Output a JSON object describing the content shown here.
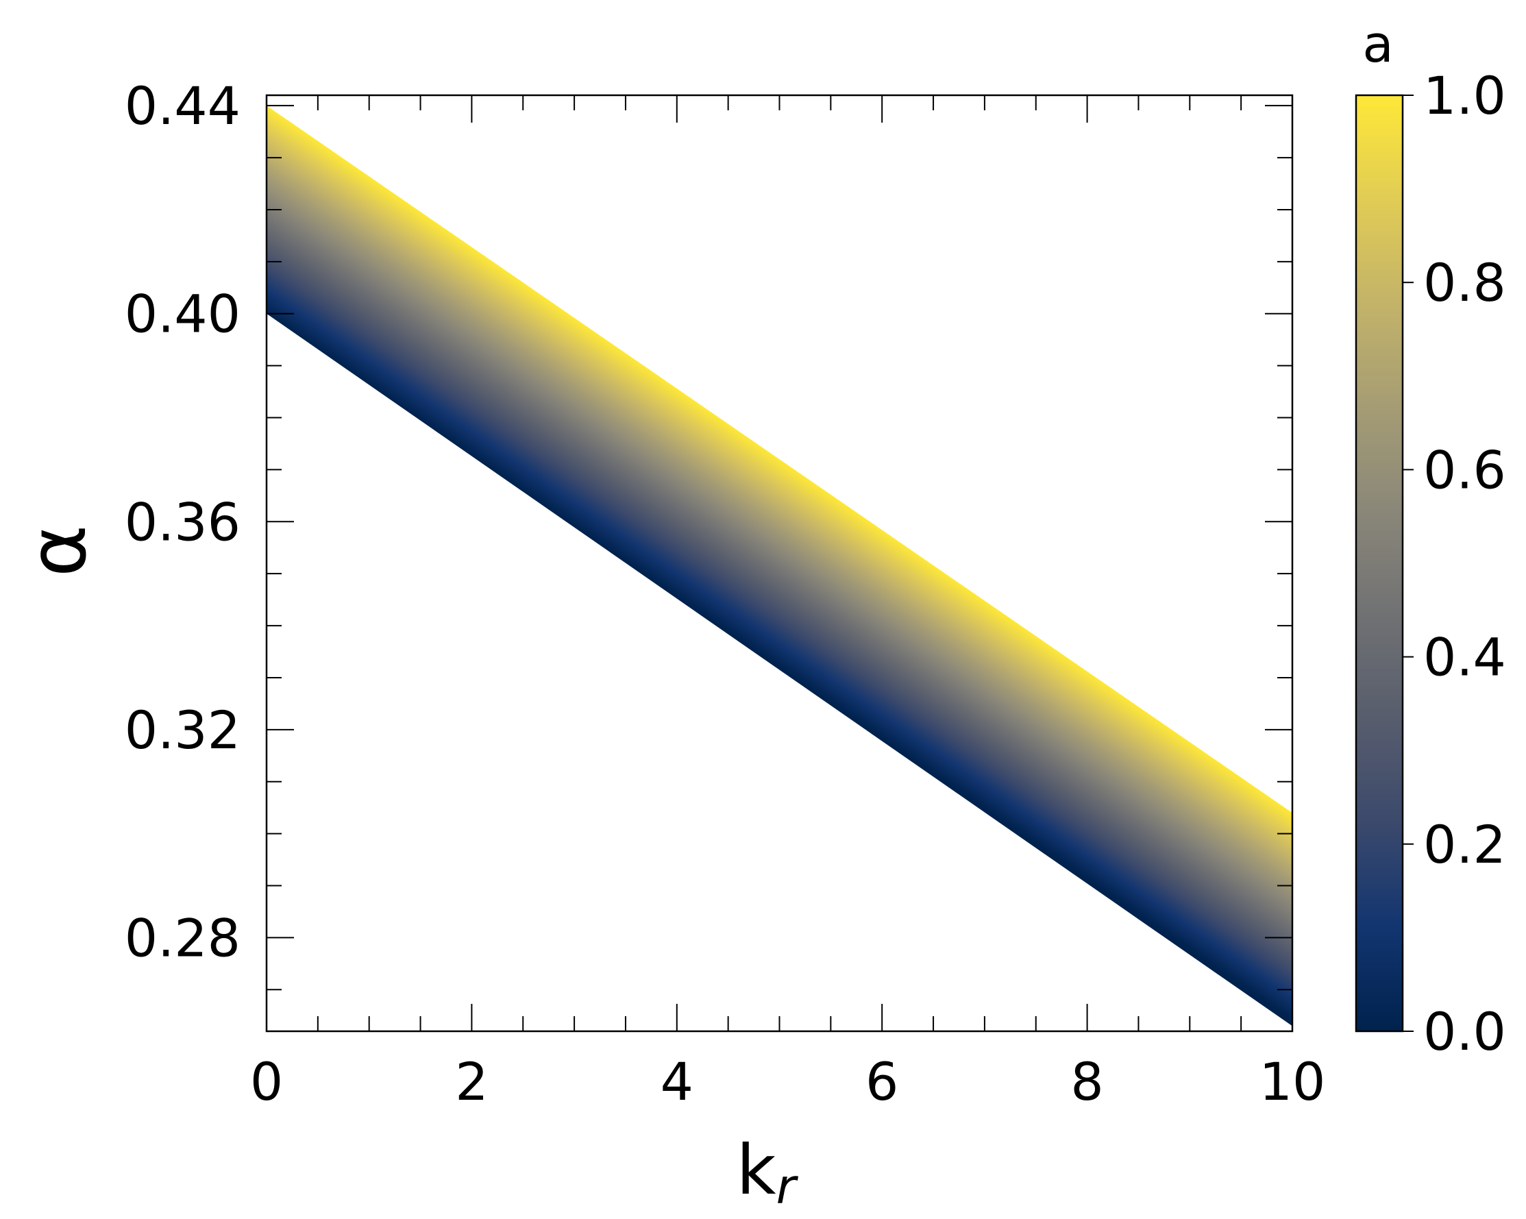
{
  "chart_data": {
    "type": "area",
    "xlabel": "k",
    "xlabel_subscript": "r",
    "ylabel": "α",
    "xlim": [
      0,
      10
    ],
    "ylim": [
      0.262,
      0.442
    ],
    "x_ticks": [
      0,
      2,
      4,
      6,
      8,
      10
    ],
    "x_tick_labels": [
      "0",
      "2",
      "4",
      "6",
      "8",
      "10"
    ],
    "x_minor_step": 0.5,
    "y_ticks": [
      0.28,
      0.32,
      0.36,
      0.4,
      0.44
    ],
    "y_tick_labels": [
      "0.28",
      "0.32",
      "0.36",
      "0.40",
      "0.44"
    ],
    "y_minor_step": 0.01,
    "grid": false,
    "series": [
      {
        "x": [
          0,
          10
        ],
        "lower": [
          0.4,
          0.263
        ],
        "upper": [
          0.44,
          0.304
        ]
      }
    ],
    "colorbar": {
      "label": "a",
      "range": [
        0.0,
        1.0
      ],
      "ticks": [
        0.0,
        0.2,
        0.4,
        0.6,
        0.8,
        1.0
      ],
      "tick_labels": [
        "0.0",
        "0.2",
        "0.4",
        "0.6",
        "0.8",
        "1.0"
      ],
      "colormap": "cividis",
      "stops": [
        "#00224e",
        "#123570",
        "#3b496c",
        "#575d6d",
        "#707173",
        "#8a8779",
        "#a59c74",
        "#c3b369",
        "#e1cc55",
        "#fee838"
      ]
    }
  }
}
